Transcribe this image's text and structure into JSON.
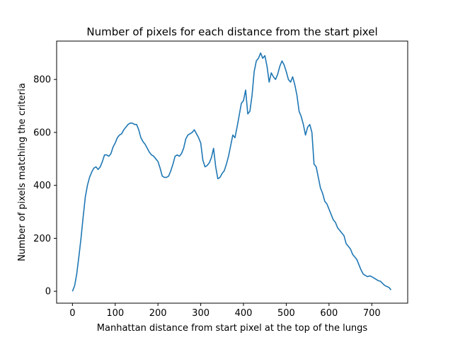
{
  "chart_data": {
    "type": "line",
    "title": "Number of pixels for each distance from the start pixel",
    "xlabel": "Manhattan distance from start pixel at the top of the lungs",
    "ylabel": "Number of pixels matching the criteria",
    "xlim": [
      -37,
      784
    ],
    "ylim": [
      -45,
      945
    ],
    "xticks": [
      0,
      100,
      200,
      300,
      400,
      500,
      600,
      700
    ],
    "yticks": [
      0,
      200,
      400,
      600,
      800
    ],
    "grid": false,
    "line_color": "#1f77b4",
    "series": [
      {
        "x": [
          0,
          5,
          10,
          15,
          20,
          25,
          30,
          35,
          40,
          45,
          50,
          55,
          60,
          65,
          70,
          75,
          80,
          85,
          90,
          95,
          100,
          105,
          110,
          115,
          120,
          125,
          130,
          135,
          140,
          145,
          150,
          155,
          160,
          165,
          170,
          175,
          180,
          185,
          190,
          195,
          200,
          205,
          210,
          215,
          220,
          225,
          230,
          235,
          240,
          245,
          250,
          255,
          260,
          265,
          270,
          275,
          280,
          285,
          290,
          295,
          300,
          305,
          310,
          315,
          320,
          325,
          330,
          335,
          340,
          345,
          350,
          355,
          360,
          365,
          370,
          375,
          380,
          385,
          390,
          395,
          400,
          405,
          410,
          415,
          420,
          425,
          430,
          435,
          440,
          445,
          450,
          455,
          460,
          465,
          470,
          475,
          480,
          485,
          490,
          495,
          500,
          505,
          510,
          515,
          520,
          525,
          530,
          535,
          540,
          545,
          550,
          555,
          560,
          565,
          570,
          575,
          580,
          585,
          590,
          595,
          600,
          605,
          610,
          615,
          620,
          625,
          630,
          635,
          640,
          645,
          650,
          655,
          660,
          665,
          670,
          675,
          680,
          685,
          690,
          695,
          700,
          705,
          710,
          715,
          720,
          725,
          730,
          735,
          740,
          745
        ],
        "y": [
          0,
          20,
          65,
          130,
          200,
          280,
          355,
          400,
          430,
          450,
          465,
          470,
          460,
          470,
          490,
          515,
          515,
          510,
          520,
          545,
          560,
          580,
          590,
          595,
          610,
          620,
          630,
          635,
          635,
          630,
          630,
          610,
          580,
          565,
          555,
          540,
          525,
          515,
          510,
          500,
          490,
          465,
          435,
          430,
          430,
          435,
          455,
          480,
          510,
          515,
          510,
          520,
          540,
          575,
          590,
          595,
          600,
          610,
          595,
          580,
          560,
          495,
          470,
          475,
          485,
          505,
          540,
          470,
          425,
          430,
          445,
          455,
          480,
          510,
          550,
          590,
          580,
          620,
          665,
          710,
          720,
          760,
          670,
          680,
          740,
          830,
          870,
          880,
          900,
          880,
          890,
          850,
          790,
          825,
          810,
          800,
          820,
          850,
          870,
          855,
          830,
          800,
          790,
          810,
          780,
          740,
          680,
          660,
          630,
          590,
          620,
          630,
          600,
          480,
          470,
          430,
          390,
          370,
          340,
          330,
          310,
          290,
          270,
          260,
          240,
          230,
          220,
          210,
          180,
          170,
          160,
          140,
          130,
          120,
          100,
          80,
          65,
          60,
          55,
          58,
          55,
          50,
          45,
          40,
          38,
          30,
          22,
          18,
          15,
          5
        ]
      }
    ]
  }
}
